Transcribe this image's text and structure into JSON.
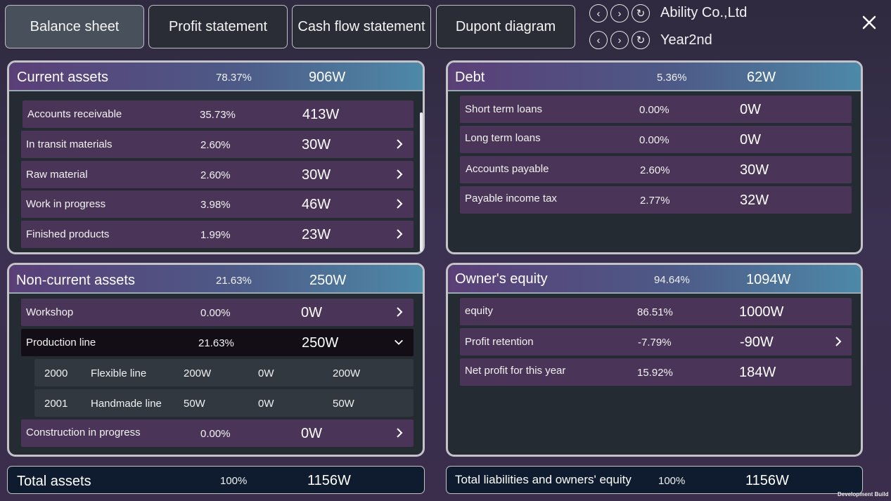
{
  "tabs": [
    {
      "label": "Balance sheet"
    },
    {
      "label": "Profit statement"
    },
    {
      "label": "Cash flow statement"
    },
    {
      "label": "Dupont diagram"
    }
  ],
  "nav": {
    "company": "Ability Co.,Ltd",
    "year": "Year2nd",
    "prev_glyph": "‹",
    "next_glyph": "›",
    "refresh_glyph": "↻"
  },
  "current_assets": {
    "title": "Current assets",
    "pct": "78.37%",
    "value": "906W",
    "rows": [
      {
        "label": "Accounts receivable",
        "pct": "35.73%",
        "value": "413W"
      },
      {
        "label": "In transit materials",
        "pct": "2.60%",
        "value": "30W"
      },
      {
        "label": "Raw material",
        "pct": "2.60%",
        "value": "30W"
      },
      {
        "label": "Work in progress",
        "pct": "3.98%",
        "value": "46W"
      },
      {
        "label": "Finished products",
        "pct": "1.99%",
        "value": "23W"
      }
    ]
  },
  "non_current_assets": {
    "title": "Non-current assets",
    "pct": "21.63%",
    "value": "250W",
    "rows": [
      {
        "label": "Workshop",
        "pct": "0.00%",
        "value": "0W"
      },
      {
        "label": "Production line",
        "pct": "21.63%",
        "value": "250W"
      },
      {
        "label": "Construction in progress",
        "pct": "0.00%",
        "value": "0W"
      }
    ],
    "sub_rows": [
      {
        "code": "2000",
        "name": "Flexible line",
        "a": "200W",
        "b": "0W",
        "c": "200W"
      },
      {
        "code": "2001",
        "name": "Handmade line",
        "a": "50W",
        "b": "0W",
        "c": "50W"
      }
    ]
  },
  "debt": {
    "title": "Debt",
    "pct": "5.36%",
    "value": "62W",
    "rows": [
      {
        "label": "Short term loans",
        "pct": "0.00%",
        "value": "0W"
      },
      {
        "label": "Long term loans",
        "pct": "0.00%",
        "value": "0W"
      },
      {
        "label": "Accounts payable",
        "pct": "2.60%",
        "value": "30W"
      },
      {
        "label": "Payable income tax",
        "pct": "2.77%",
        "value": "32W"
      }
    ]
  },
  "owners_equity": {
    "title": "Owner's equity",
    "pct": "94.64%",
    "value": "1094W",
    "rows": [
      {
        "label": "equity",
        "pct": "86.51%",
        "value": "1000W"
      },
      {
        "label": "Profit retention",
        "pct": "-7.79%",
        "value": "-90W"
      },
      {
        "label": "Net profit for this year",
        "pct": "15.92%",
        "value": "184W"
      }
    ]
  },
  "totals": {
    "assets": {
      "label": "Total assets",
      "pct": "100%",
      "value": "1156W"
    },
    "liabilities": {
      "label": "Total liabilities and owners' equity",
      "pct": "100%",
      "value": "1156W"
    }
  },
  "footer": {
    "dev_build": "Development Build"
  }
}
